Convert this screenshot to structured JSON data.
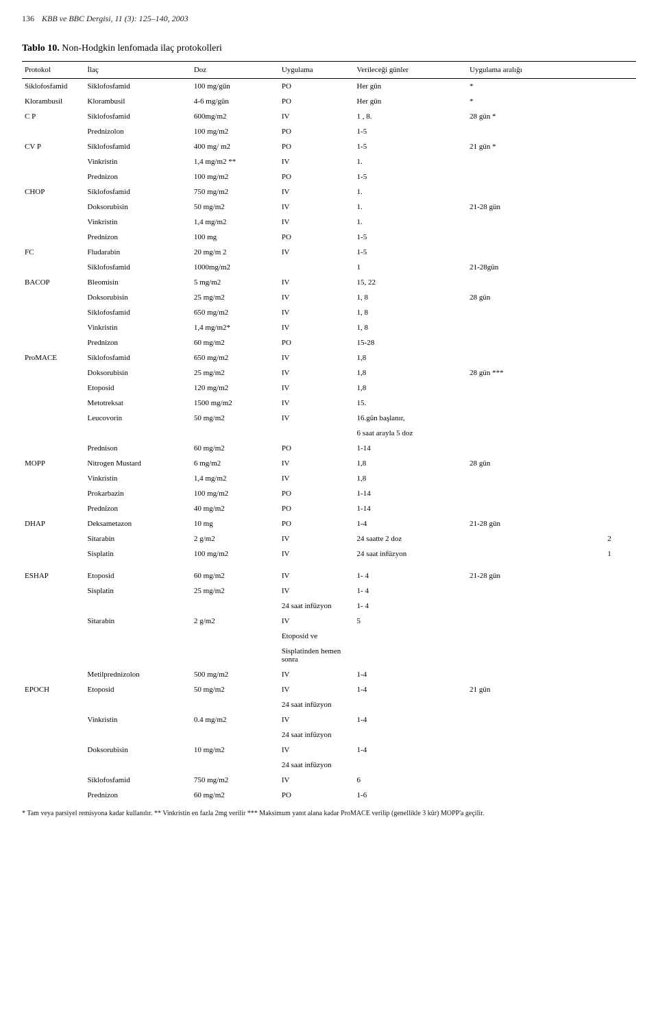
{
  "header": {
    "page_num": "136",
    "journal": "KBB ve BBC Dergisi, 11 (3): 125–140, 2003"
  },
  "table": {
    "caption_bold": "Tablo 10.",
    "caption_rest": "Non-Hodgkin lenfomada ilaç protokolleri",
    "columns": [
      "Protokol",
      "İlaç",
      "Doz",
      "Uygulama",
      "Verileceği günler",
      "Uygulama aralığı",
      ""
    ],
    "rows": [
      [
        "Siklofosfamid",
        "Siklofosfamid",
        "100 mg/gün",
        "PO",
        "Her gün",
        "*",
        ""
      ],
      [
        "Klorambusil",
        "Klorambusil",
        "4-6 mg/gün",
        "PO",
        "Her gün",
        "*",
        ""
      ],
      [
        "C P",
        "Siklofosfamid",
        "600mg/m2",
        "IV",
        "1 , 8.",
        "28 gün *",
        ""
      ],
      [
        "",
        "Prednizolon",
        "100 mg/m2",
        "PO",
        "1-5",
        "",
        ""
      ],
      [
        "CV P",
        "Siklofosfamid",
        "400 mg/ m2",
        "PO",
        "1-5",
        "21 gün *",
        ""
      ],
      [
        "",
        "Vinkristin",
        "1,4 mg/m2 **",
        "IV",
        "1.",
        "",
        ""
      ],
      [
        "",
        "Prednizon",
        "100 mg/m2",
        "PO",
        "1-5",
        "",
        ""
      ],
      [
        "CHOP",
        "Siklofosfamid",
        "750 mg/m2",
        "IV",
        "1.",
        "",
        ""
      ],
      [
        "",
        "Doksorubisin",
        "50 mg/m2",
        "IV",
        "1.",
        "21-28 gün",
        ""
      ],
      [
        "",
        "Vinkristin",
        "1,4  mg/m2",
        "IV",
        "1.",
        "",
        ""
      ],
      [
        "",
        "Prednizon",
        "100 mg",
        "PO",
        "1-5",
        "",
        ""
      ],
      [
        "FC",
        "Fludarabin",
        "20 mg/m 2",
        "IV",
        "1-5",
        "",
        ""
      ],
      [
        "",
        "Siklofosfamid",
        "1000mg/m2",
        "",
        "1",
        "21-28gün",
        ""
      ],
      [
        "BACOP",
        "Bleomisin",
        "5 mg/m2",
        "IV",
        "15, 22",
        "",
        ""
      ],
      [
        "",
        "Doksorubisin",
        "25 mg/m2",
        "IV",
        "1, 8",
        "28 gün",
        ""
      ],
      [
        "",
        "Siklofosfamid",
        "650 mg/m2",
        "IV",
        "1, 8",
        "",
        ""
      ],
      [
        "",
        "Vinkristin",
        "1,4 mg/m2*",
        "IV",
        "1, 8",
        "",
        ""
      ],
      [
        "",
        "Prednizon",
        "60 mg/m2",
        "PO",
        "15-28",
        "",
        ""
      ],
      [
        "ProMACE",
        "Siklofosfamid",
        "650 mg/m2",
        "IV",
        "1,8",
        "",
        ""
      ],
      [
        "",
        "Doksorubisin",
        "25 mg/m2",
        "IV",
        "1,8",
        "28 gün ***",
        ""
      ],
      [
        "",
        "Etoposid",
        "120 mg/m2",
        "IV",
        "1,8",
        "",
        ""
      ],
      [
        "",
        "Metotreksat",
        "1500 mg/m2",
        "IV",
        "15.",
        "",
        ""
      ],
      [
        "",
        "Leucovorin",
        "50 mg/m2",
        "IV",
        "16.gün başlanır,",
        "",
        ""
      ],
      [
        "",
        "",
        "",
        "",
        "6 saat arayla 5 doz",
        "",
        ""
      ],
      [
        "",
        "Prednison",
        "60  mg/m2",
        "PO",
        "  1-14",
        "",
        ""
      ],
      [
        "MOPP",
        "Nitrogen Mustard",
        "6  mg/m2",
        "IV",
        "1,8",
        "28 gün",
        ""
      ],
      [
        "",
        "Vinkristin",
        "1,4  mg/m2",
        "IV",
        "1,8",
        "",
        ""
      ],
      [
        "",
        "Prokarbazin",
        "100 mg/m2",
        "PO",
        "1-14",
        "",
        ""
      ],
      [
        "",
        "Prednizon",
        "40  mg/m2",
        "PO",
        "1-14",
        "",
        ""
      ],
      [
        "DHAP",
        "Deksametazon",
        "10 mg",
        "PO",
        "1-4",
        "21-28 gün",
        ""
      ],
      [
        "",
        "Sitarabin",
        "2 g/m2",
        "IV",
        "24 saatte  2 doz",
        "",
        "2"
      ],
      [
        "",
        "Sisplatin",
        "100 mg/m2",
        "IV",
        "24 saat infüzyon",
        "",
        "1"
      ],
      [
        "",
        "",
        "",
        "",
        "",
        "",
        ""
      ],
      [
        "ESHAP",
        "Etoposid",
        "60 mg/m2",
        "IV",
        "1- 4",
        "21-28 gün",
        ""
      ],
      [
        "",
        "Sisplatin",
        "25 mg/m2",
        "IV",
        "1- 4",
        "",
        ""
      ],
      [
        "",
        "",
        "",
        "24 saat infüzyon",
        "1- 4",
        "",
        ""
      ],
      [
        "",
        "Sitarabin",
        "2 g/m2",
        "IV",
        "5",
        "",
        ""
      ],
      [
        "",
        "",
        "",
        "Etoposid ve",
        "",
        "",
        ""
      ],
      [
        "",
        "",
        "",
        "Sisplatinden hemen sonra",
        "",
        "",
        ""
      ],
      [
        "",
        "Metilprednizolon",
        "500 mg/m2",
        "IV",
        "1-4",
        "",
        ""
      ],
      [
        "EPOCH",
        "Etoposid",
        "50 mg/m2",
        "IV",
        "1-4",
        "21 gün",
        ""
      ],
      [
        "",
        "",
        "",
        "24 saat infüzyon",
        "",
        "",
        ""
      ],
      [
        "",
        "Vinkristin",
        "0.4 mg/m2",
        "IV",
        "1-4",
        "",
        ""
      ],
      [
        "",
        "",
        "",
        "24 saat infüzyon",
        "",
        "",
        ""
      ],
      [
        "",
        "Doksorubisin",
        "10 mg/m2",
        "IV",
        "1-4",
        "",
        ""
      ],
      [
        "",
        "",
        "",
        "24 saat infüzyon",
        "",
        "",
        ""
      ],
      [
        "",
        "Siklofosfamid",
        "750 mg/m2",
        "IV",
        "  6",
        "",
        ""
      ],
      [
        "",
        "Prednizon",
        "60 mg/m2",
        "PO",
        "1-6",
        "",
        ""
      ]
    ]
  },
  "footnote": "*   Tam veya parsiyel remisyona kadar kullanılır.  **  Vinkristin en fazla  2mg verilir   ***  Maksimum yanıt alana kadar ProMACE verilip  (genellikle 3 kür)  MOPP'a  geçilir."
}
